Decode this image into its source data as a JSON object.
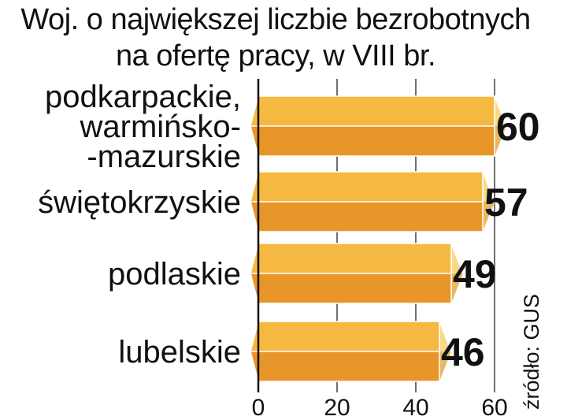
{
  "chart_data": {
    "type": "bar",
    "orientation": "horizontal",
    "title_lines": [
      "Woj. o największej liczbie bezrobotnych",
      "na ofertę pracy, w VIII br."
    ],
    "categories": [
      [
        "podkarpackie,",
        "warmińsko-",
        "-mazurskie"
      ],
      [
        "świętokrzyskie"
      ],
      [
        "podlaskie"
      ],
      [
        "lubelskie"
      ]
    ],
    "values": [
      60,
      57,
      49,
      46
    ],
    "value_labels": [
      "60",
      "57",
      "49",
      "46"
    ],
    "xlim": [
      0,
      60
    ],
    "xticks": [
      "0",
      "20",
      "40",
      "60"
    ],
    "grid": true,
    "source": "źródło: GUS",
    "colors": {
      "bar_top": "#F5B942",
      "bar_bottom": "#E8952A",
      "bar_end_light": "#F8D98A",
      "bar_end_dark": "#E9B862",
      "bar_outline": "#ffffff",
      "axis": "#111111",
      "grid": "#222222"
    }
  }
}
